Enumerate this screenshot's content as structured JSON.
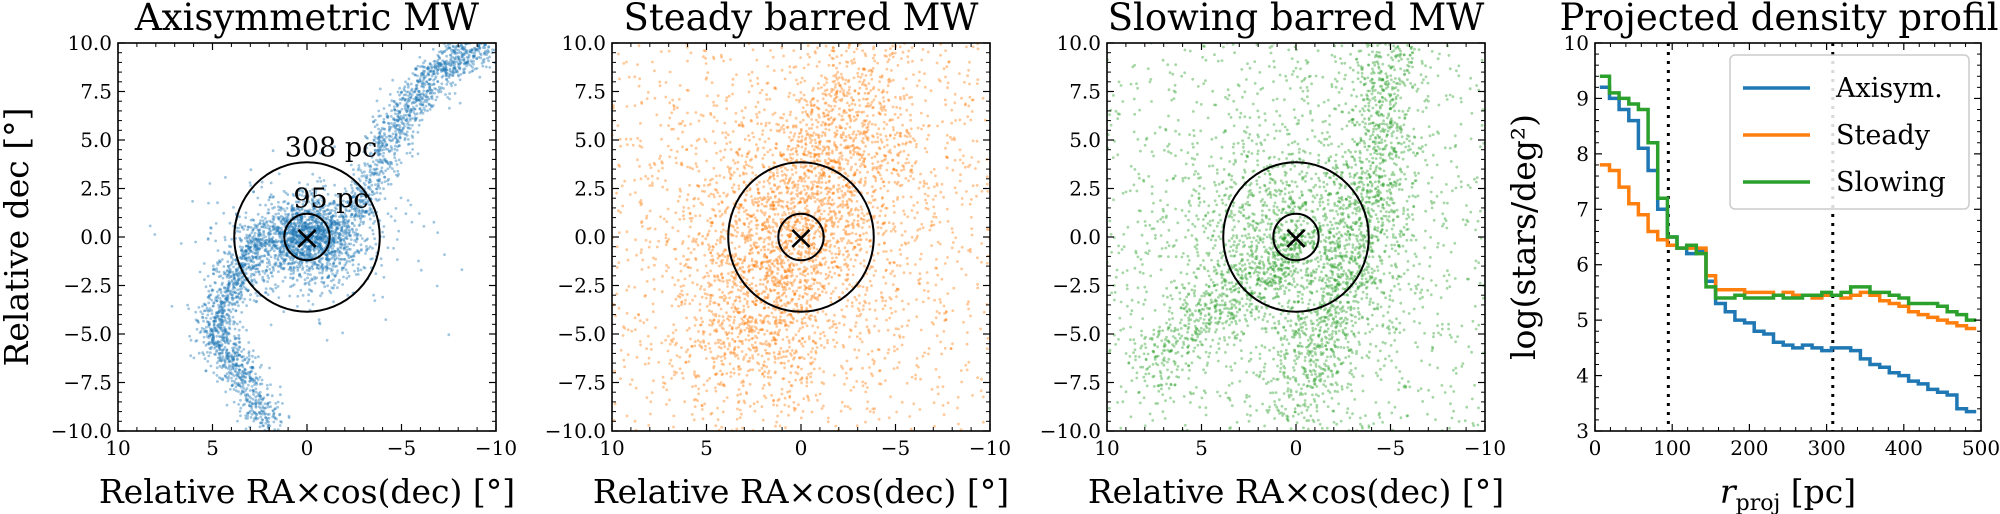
{
  "chart_data": [
    {
      "type": "scatter",
      "title": "Axisymmetric MW",
      "xlabel": "Relative RA×cos(dec) [°]",
      "ylabel": "Relative dec [°]",
      "xlim": [
        10,
        -10
      ],
      "ylim": [
        -10,
        10
      ],
      "xticks": [
        10,
        5,
        0,
        -5,
        -10
      ],
      "xtick_labels": [
        "10",
        "5",
        "0",
        "−5",
        "−10"
      ],
      "yticks": [
        10,
        7.5,
        5,
        2.5,
        0,
        -2.5,
        -5,
        -7.5,
        -10
      ],
      "ytick_labels": [
        "10.0",
        "7.5",
        "5.0",
        "2.5",
        "0.0",
        "−2.5",
        "−5.0",
        "−7.5",
        "−10.0"
      ],
      "color": "#1f77b4",
      "circles": [
        {
          "label": "308 pc",
          "radius_deg": 3.85
        },
        {
          "label": "95 pc",
          "radius_deg": 1.2
        }
      ],
      "center_marker": "×",
      "density_components": [
        {
          "kind": "bulge",
          "cx": 0,
          "cy": 0,
          "sx": 1.3,
          "sy": 1.0,
          "weight": 0.33
        },
        {
          "kind": "bulge",
          "cx": 0,
          "cy": -0.3,
          "sx": 2.6,
          "sy": 1.7,
          "weight": 0.12
        },
        {
          "kind": "path",
          "points": [
            [
              2.5,
              0
            ],
            [
              4,
              -2.5
            ],
            [
              5,
              -5
            ],
            [
              3.5,
              -7
            ],
            [
              2,
              -10
            ]
          ],
          "width": 0.9,
          "weight": 0.3
        },
        {
          "kind": "path",
          "points": [
            [
              -2.5,
              1
            ],
            [
              -4,
              4.5
            ],
            [
              -5.5,
              7
            ],
            [
              -7.5,
              9
            ],
            [
              -9.5,
              10
            ]
          ],
          "width": 0.9,
          "weight": 0.3
        }
      ]
    },
    {
      "type": "scatter",
      "title": "Steady barred MW",
      "xlabel": "Relative RA×cos(dec) [°]",
      "ylabel": "",
      "xlim": [
        10,
        -10
      ],
      "ylim": [
        -10,
        10
      ],
      "xticks": [
        10,
        5,
        0,
        -5,
        -10
      ],
      "xtick_labels": [
        "10",
        "5",
        "0",
        "−5",
        "−10"
      ],
      "yticks": [
        10,
        7.5,
        5,
        2.5,
        0,
        -2.5,
        -5,
        -7.5,
        -10
      ],
      "ytick_labels": [
        "10.0",
        "7.5",
        "5.0",
        "2.5",
        "0.0",
        "−2.5",
        "−5.0",
        "−7.5",
        "−10.0"
      ],
      "color": "#ff7f0e",
      "circles": [
        {
          "label": "",
          "radius_deg": 3.85
        },
        {
          "label": "",
          "radius_deg": 1.2
        }
      ],
      "center_marker": "×",
      "density_components": [
        {
          "kind": "bulge",
          "cx": 0,
          "cy": 0,
          "sx": 4.5,
          "sy": 4.5,
          "weight": 0.4
        },
        {
          "kind": "path",
          "points": [
            [
              4,
              -7
            ],
            [
              2,
              -3
            ],
            [
              0,
              1
            ],
            [
              -2,
              5
            ],
            [
              -4,
              9
            ]
          ],
          "width": 3.0,
          "weight": 0.4
        },
        {
          "kind": "uniform",
          "weight": 0.2
        }
      ]
    },
    {
      "type": "scatter",
      "title": "Slowing barred MW",
      "xlabel": "Relative RA×cos(dec) [°]",
      "ylabel": "",
      "xlim": [
        10,
        -10
      ],
      "ylim": [
        -10,
        10
      ],
      "xticks": [
        10,
        5,
        0,
        -5,
        -10
      ],
      "xtick_labels": [
        "10",
        "5",
        "0",
        "−5",
        "−10"
      ],
      "yticks": [
        10,
        7.5,
        5,
        2.5,
        0,
        -2.5,
        -5,
        -7.5,
        -10
      ],
      "ytick_labels": [
        "10.0",
        "7.5",
        "5.0",
        "2.5",
        "0.0",
        "−2.5",
        "−5.0",
        "−7.5",
        "−10.0"
      ],
      "color": "#2ca02c",
      "circles": [
        {
          "label": "",
          "radius_deg": 3.85
        },
        {
          "label": "",
          "radius_deg": 1.2
        }
      ],
      "center_marker": "×",
      "density_components": [
        {
          "kind": "bulge",
          "cx": 0,
          "cy": 0,
          "sx": 3.5,
          "sy": 3.5,
          "weight": 0.3
        },
        {
          "kind": "path",
          "points": [
            [
              0,
              -9
            ],
            [
              -2,
              -4
            ],
            [
              -3.5,
              0
            ],
            [
              -4.5,
              5
            ],
            [
              -5,
              10
            ]
          ],
          "width": 1.6,
          "weight": 0.3
        },
        {
          "kind": "path",
          "points": [
            [
              8,
              -7
            ],
            [
              5,
              -4
            ],
            [
              2,
              -2
            ],
            [
              0,
              0
            ]
          ],
          "width": 1.3,
          "weight": 0.15
        },
        {
          "kind": "uniform",
          "weight": 0.25
        }
      ]
    },
    {
      "type": "line",
      "title": "Projected density profile",
      "xlabel": "r_proj [pc]",
      "ylabel": "log(stars/deg²)",
      "xlim": [
        0,
        500
      ],
      "ylim": [
        3,
        10
      ],
      "xticks": [
        0,
        100,
        200,
        300,
        400,
        500
      ],
      "xtick_labels": [
        "0",
        "100",
        "200",
        "300",
        "400",
        "500"
      ],
      "yticks": [
        3,
        4,
        5,
        6,
        7,
        8,
        9,
        10
      ],
      "ytick_labels": [
        "3",
        "4",
        "5",
        "6",
        "7",
        "8",
        "9",
        "10"
      ],
      "vlines": [
        95,
        308
      ],
      "step": true,
      "bin_width": 12.5,
      "x": [
        12.5,
        25,
        37.5,
        50,
        62.5,
        75,
        87.5,
        100,
        112.5,
        125,
        137.5,
        150,
        162.5,
        175,
        187.5,
        200,
        212.5,
        225,
        237.5,
        250,
        262.5,
        275,
        287.5,
        300,
        312.5,
        325,
        337.5,
        350,
        362.5,
        375,
        387.5,
        400,
        412.5,
        425,
        437.5,
        450,
        462.5,
        475,
        487.5
      ],
      "series": [
        {
          "name": "Axisym.",
          "color": "#1f77b4",
          "values": [
            9.2,
            9.0,
            8.8,
            8.6,
            8.1,
            7.7,
            7.0,
            6.5,
            6.3,
            6.2,
            6.25,
            5.7,
            5.3,
            5.15,
            5.0,
            4.95,
            4.8,
            4.75,
            4.6,
            4.55,
            4.5,
            4.55,
            4.5,
            4.45,
            4.5,
            4.5,
            4.45,
            4.3,
            4.2,
            4.15,
            4.05,
            4.0,
            3.9,
            3.85,
            3.75,
            3.7,
            3.65,
            3.4,
            3.35
          ]
        },
        {
          "name": "Steady",
          "color": "#ff7f0e",
          "values": [
            7.8,
            7.7,
            7.4,
            7.1,
            6.9,
            6.6,
            6.45,
            6.35,
            6.3,
            6.3,
            6.3,
            5.8,
            5.55,
            5.55,
            5.55,
            5.5,
            5.5,
            5.5,
            5.45,
            5.5,
            5.45,
            5.45,
            5.4,
            5.45,
            5.45,
            5.4,
            5.45,
            5.5,
            5.45,
            5.35,
            5.3,
            5.25,
            5.15,
            5.1,
            5.05,
            5.0,
            4.95,
            4.9,
            4.85
          ]
        },
        {
          "name": "Slowing",
          "color": "#2ca02c",
          "values": [
            9.4,
            9.1,
            9.0,
            8.9,
            8.8,
            8.2,
            7.2,
            6.5,
            6.3,
            6.35,
            6.2,
            5.6,
            5.4,
            5.4,
            5.45,
            5.4,
            5.4,
            5.4,
            5.45,
            5.4,
            5.4,
            5.45,
            5.45,
            5.5,
            5.45,
            5.5,
            5.6,
            5.6,
            5.5,
            5.5,
            5.45,
            5.4,
            5.3,
            5.3,
            5.3,
            5.25,
            5.15,
            5.1,
            5.0
          ]
        }
      ]
    }
  ]
}
